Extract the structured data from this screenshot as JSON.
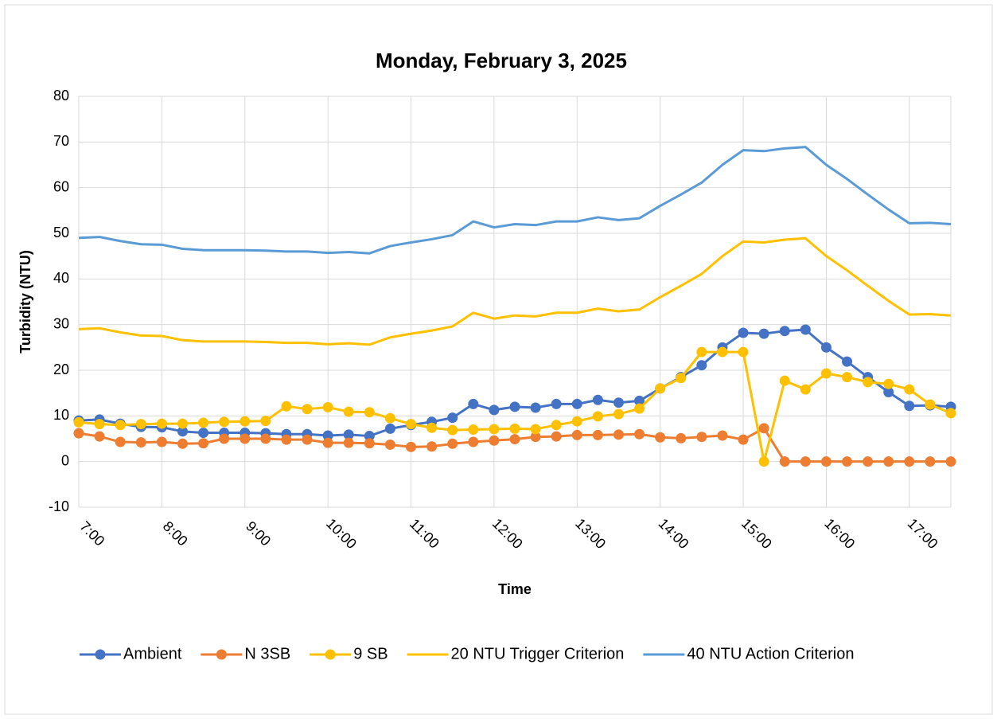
{
  "chart_data": {
    "type": "line",
    "title": "Monday, February 3, 2025",
    "x_label": "Time",
    "y_label": "Turbidity (NTU)",
    "x": [
      7,
      7.25,
      7.5,
      7.75,
      8,
      8.25,
      8.5,
      8.75,
      9,
      9.25,
      9.5,
      9.75,
      10,
      10.25,
      10.5,
      10.75,
      11,
      11.25,
      11.5,
      11.75,
      12,
      12.25,
      12.5,
      12.75,
      13,
      13.25,
      13.5,
      13.75,
      14,
      14.25,
      14.5,
      14.75,
      15,
      15.25,
      15.5,
      15.75,
      16,
      16.25,
      16.5,
      16.75,
      17,
      17.25,
      17.5
    ],
    "xlim": [
      7,
      17.5
    ],
    "xticks": [
      {
        "value": 7,
        "label": "7:00"
      },
      {
        "value": 8,
        "label": "8:00"
      },
      {
        "value": 9,
        "label": "9:00"
      },
      {
        "value": 10,
        "label": "10:00"
      },
      {
        "value": 11,
        "label": "11:00"
      },
      {
        "value": 12,
        "label": "12:00"
      },
      {
        "value": 13,
        "label": "13:00"
      },
      {
        "value": 14,
        "label": "14:00"
      },
      {
        "value": 15,
        "label": "15:00"
      },
      {
        "value": 16,
        "label": "16:00"
      },
      {
        "value": 17,
        "label": "17:00"
      }
    ],
    "ylim": [
      -10,
      80
    ],
    "yticks": [
      -10,
      0,
      10,
      20,
      30,
      40,
      50,
      60,
      70,
      80
    ],
    "grid": true,
    "legend": "bottom",
    "series": [
      {
        "name": "Ambient",
        "color": "#4472c4",
        "marker": true,
        "values": [
          9.0,
          9.2,
          8.3,
          7.6,
          7.5,
          6.6,
          6.3,
          6.3,
          6.3,
          6.2,
          6.0,
          6.0,
          5.7,
          5.9,
          5.6,
          7.2,
          8.0,
          8.7,
          9.6,
          12.6,
          11.3,
          12.0,
          11.8,
          12.6,
          12.6,
          13.5,
          12.9,
          13.3,
          16.0,
          18.5,
          21.1,
          25.0,
          28.2,
          28.0,
          28.6,
          28.9,
          25.0,
          21.9,
          18.5,
          15.2,
          12.2,
          12.3,
          12.0
        ]
      },
      {
        "name": "N 3SB",
        "color": "#ed7d31",
        "marker": true,
        "values": [
          6.2,
          5.5,
          4.3,
          4.2,
          4.3,
          3.9,
          4.0,
          5.0,
          5.0,
          5.0,
          4.8,
          4.8,
          4.1,
          4.1,
          4.0,
          3.7,
          3.2,
          3.3,
          3.9,
          4.3,
          4.6,
          4.9,
          5.4,
          5.5,
          5.8,
          5.8,
          5.9,
          6.0,
          5.3,
          5.1,
          5.4,
          5.7,
          4.8,
          7.3,
          0,
          0,
          0,
          0,
          0,
          0,
          0,
          0,
          0
        ]
      },
      {
        "name": "9 SB",
        "color": "#ffc000",
        "marker": true,
        "values": [
          8.6,
          8.2,
          8.0,
          8.2,
          8.3,
          8.3,
          8.5,
          8.7,
          8.8,
          8.9,
          12.1,
          11.5,
          11.9,
          10.9,
          10.8,
          9.5,
          8.2,
          7.4,
          6.9,
          7.0,
          7.1,
          7.2,
          7.1,
          8.0,
          8.8,
          9.9,
          10.4,
          11.6,
          16.0,
          18.3,
          24.0,
          24.0,
          24.0,
          0,
          17.7,
          15.8,
          19.3,
          18.5,
          17.4,
          17.0,
          15.8,
          12.5,
          10.6
        ]
      },
      {
        "name": "20 NTU Trigger Criterion",
        "color": "#ffc000",
        "marker": false,
        "values": [
          29.0,
          29.2,
          28.3,
          27.6,
          27.5,
          26.6,
          26.3,
          26.3,
          26.3,
          26.2,
          26.0,
          26.0,
          25.7,
          25.9,
          25.6,
          27.2,
          28.0,
          28.7,
          29.6,
          32.6,
          31.3,
          32.0,
          31.8,
          32.6,
          32.6,
          33.5,
          32.9,
          33.3,
          36.0,
          38.5,
          41.1,
          45.0,
          48.2,
          48.0,
          48.6,
          48.9,
          45.0,
          41.9,
          38.5,
          35.2,
          32.2,
          32.3,
          32.0
        ]
      },
      {
        "name": "40 NTU Action Criterion",
        "color": "#5b9bd5",
        "marker": false,
        "values": [
          49.0,
          49.2,
          48.3,
          47.6,
          47.5,
          46.6,
          46.3,
          46.3,
          46.3,
          46.2,
          46.0,
          46.0,
          45.7,
          45.9,
          45.6,
          47.2,
          48.0,
          48.7,
          49.6,
          52.6,
          51.3,
          52.0,
          51.8,
          52.6,
          52.6,
          53.5,
          52.9,
          53.3,
          56.0,
          58.5,
          61.1,
          65.0,
          68.2,
          68.0,
          68.6,
          68.9,
          65.0,
          61.9,
          58.5,
          55.2,
          52.2,
          52.3,
          52.0
        ]
      }
    ]
  }
}
